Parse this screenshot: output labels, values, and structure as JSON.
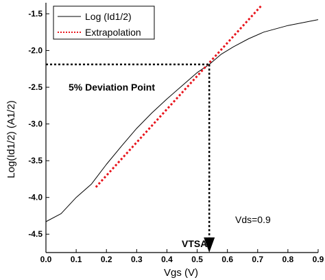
{
  "chart_data": {
    "type": "line",
    "xlabel": "Vgs (V)",
    "ylabel": "Log(Id1/2) (A1/2)",
    "xlim": [
      0.0,
      0.9
    ],
    "ylim": [
      -4.75,
      -1.35
    ],
    "x_ticks": [
      "0.0",
      "0.1",
      "0.2",
      "0.3",
      "0.4",
      "0.5",
      "0.6",
      "0.7",
      "0.8",
      "0.9"
    ],
    "y_ticks": [
      "-1.5",
      "-2.0",
      "-2.5",
      "-3.0",
      "-3.5",
      "-4.0",
      "-4.5"
    ],
    "legend_position": "top-left",
    "grid": false,
    "series": [
      {
        "name": "Log (Id1/2)",
        "style": "solid",
        "color": "#000000",
        "x": [
          0.0,
          0.05,
          0.1,
          0.15,
          0.2,
          0.25,
          0.3,
          0.35,
          0.4,
          0.45,
          0.5,
          0.54,
          0.58,
          0.62,
          0.67,
          0.72,
          0.8,
          0.9
        ],
        "y": [
          -4.33,
          -4.22,
          -4.0,
          -3.82,
          -3.55,
          -3.3,
          -3.06,
          -2.85,
          -2.66,
          -2.48,
          -2.3,
          -2.19,
          -2.05,
          -1.95,
          -1.84,
          -1.75,
          -1.66,
          -1.58
        ]
      },
      {
        "name": "Extrapolation",
        "style": "dotted",
        "color": "#e8141c",
        "x": [
          0.165,
          0.712
        ],
        "y": [
          -3.86,
          -1.39
        ]
      }
    ],
    "annotations": {
      "deviation_label": "5% Deviation Point",
      "deviation_point": {
        "x": 0.54,
        "y": -2.19
      },
      "vtsat_label": "VTSAT",
      "vtsat_x": 0.54,
      "vds_label": "Vds=0.9"
    }
  }
}
